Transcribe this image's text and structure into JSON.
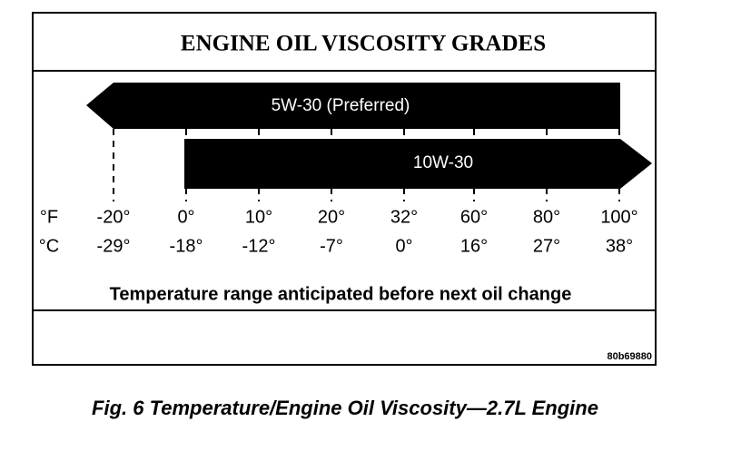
{
  "title": "ENGINE OIL VISCOSITY GRADES",
  "grades": [
    {
      "label": "5W-30 (Preferred)"
    },
    {
      "label": "10W-30"
    }
  ],
  "scale": {
    "units": [
      "°F",
      "°C"
    ],
    "fahrenheit": [
      "-20°",
      "0°",
      "10°",
      "20°",
      "32°",
      "60°",
      "80°",
      "100°"
    ],
    "celsius": [
      "-29°",
      "-18°",
      "-12°",
      "-7°",
      "0°",
      "16°",
      "27°",
      "38°"
    ]
  },
  "range_note": "Temperature range anticipated before next oil change",
  "figure_id": "80b69880",
  "caption": "Fig. 6 Temperature/Engine Oil Viscosity—2.7L Engine"
}
